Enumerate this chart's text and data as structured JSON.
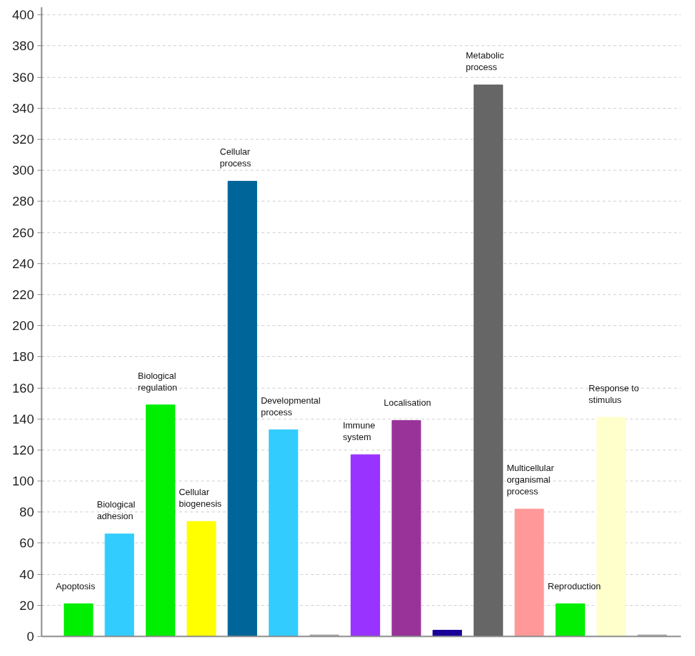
{
  "chart_data": {
    "type": "bar",
    "categories": [
      "Apoptosis",
      "Biological\nadhesion",
      "Biological\nregulation",
      "Cellular\nbiogenesis",
      "Cellular\nprocess",
      "Developmental\nprocess",
      null,
      "Immune\nsystem",
      "Localisation",
      null,
      "Metabolic\nprocess",
      "Multicellular\norganismal\nprocess",
      "Reproduction",
      "Response  to\nstimulus",
      null
    ],
    "values": [
      21,
      66,
      149,
      74,
      293,
      133,
      1,
      117,
      139,
      4,
      355,
      82,
      21,
      141,
      1
    ],
    "colors": [
      "#00ee00",
      "#33ccff",
      "#00ee00",
      "#ffff00",
      "#006699",
      "#33ccff",
      "#aaaaaa",
      "#9933ff",
      "#993399",
      "#1a0099",
      "#666666",
      "#ff9999",
      "#00ee00",
      "#ffffcc",
      "#aaaaaa"
    ],
    "ylim": [
      0,
      405
    ],
    "yticks": [
      0,
      20,
      40,
      60,
      80,
      100,
      120,
      140,
      160,
      180,
      200,
      220,
      240,
      260,
      280,
      300,
      320,
      340,
      360,
      380,
      400
    ],
    "grid": "y",
    "tick_labels": "y"
  }
}
